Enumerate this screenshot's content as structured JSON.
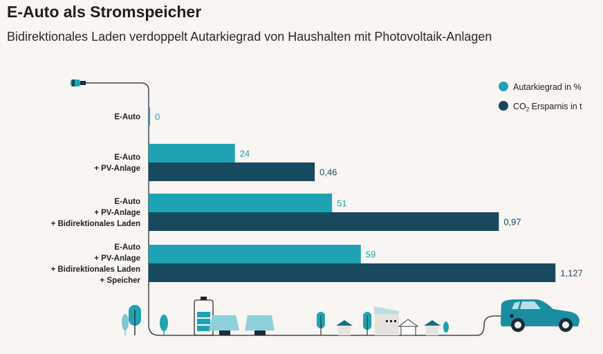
{
  "title": "E-Auto als Stromspeicher",
  "subtitle": "Bidirektionales Laden verdoppelt Autarkiegrad von Haushalten mit Photovoltaik-Anlagen",
  "colors": {
    "autarkie": "#1fa3b3",
    "co2": "#174a5e",
    "background": "#f8f5f2"
  },
  "chart_data": {
    "type": "bar",
    "orientation": "horizontal",
    "title": "E-Auto als Stromspeicher",
    "subtitle": "Bidirektionales Laden verdoppelt Autarkiegrad von Haushalten mit Photovoltaik-Anlagen",
    "categories": [
      [
        "E-Auto"
      ],
      [
        "E-Auto",
        "+ PV-Anlage"
      ],
      [
        "E-Auto",
        "+ PV-Anlage",
        "+ Bidirektionales Laden"
      ],
      [
        "E-Auto",
        "+ PV-Anlage",
        "+ Bidirektionales Laden",
        "+ Speicher"
      ]
    ],
    "series": [
      {
        "name": "Autarkiegrad in %",
        "values": [
          0,
          24,
          51,
          59
        ],
        "labels": [
          "0",
          "24",
          "51",
          "59"
        ]
      },
      {
        "name": "CO2 Ersparnis in t",
        "values": [
          null,
          0.46,
          0.97,
          1.127
        ],
        "labels": [
          null,
          "0,46",
          "0,97",
          "1,127"
        ]
      }
    ],
    "legend": {
      "position": "top-right",
      "items": [
        {
          "text": "Autarkiegrad in %"
        },
        {
          "text_main": "CO",
          "text_sub": "2",
          "text_rest": " Ersparnis in t"
        }
      ]
    },
    "grid": false
  }
}
